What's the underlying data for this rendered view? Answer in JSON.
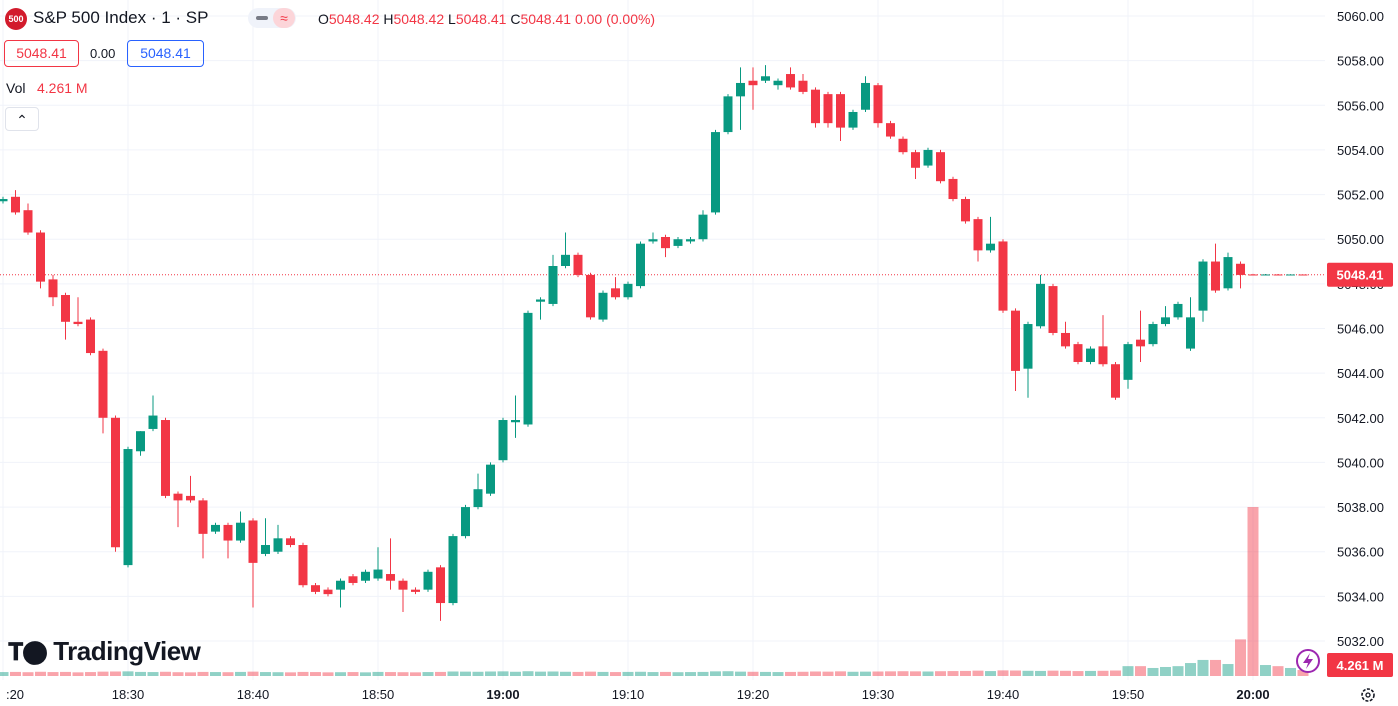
{
  "header": {
    "logo": "500",
    "title": "S&P 500 Index · 1 · SP",
    "o_label": "O",
    "o": "5048.42",
    "h_label": "H",
    "h": "5048.42",
    "l_label": "L",
    "l": "5048.41",
    "c_label": "C",
    "c": "5048.41",
    "change": "0.00 (0.00%)",
    "sell": "5048.41",
    "spread": "0.00",
    "buy": "5048.41",
    "vol_label": "Vol",
    "vol": "4.261 M",
    "brand": "TradingView"
  },
  "chart_data": {
    "type": "candlestick",
    "up_color": "#089981",
    "down_color": "#f23645",
    "grid": true,
    "x": [
      "18:20",
      "18:21",
      "18:22",
      "18:23",
      "18:24",
      "18:25",
      "18:26",
      "18:27",
      "18:28",
      "18:29",
      "18:30",
      "18:31",
      "18:32",
      "18:33",
      "18:34",
      "18:35",
      "18:36",
      "18:37",
      "18:38",
      "18:39",
      "18:40",
      "18:41",
      "18:42",
      "18:43",
      "18:44",
      "18:45",
      "18:46",
      "18:47",
      "18:48",
      "18:49",
      "18:50",
      "18:51",
      "18:52",
      "18:53",
      "18:54",
      "18:55",
      "18:56",
      "18:57",
      "18:58",
      "18:59",
      "19:00",
      "19:01",
      "19:02",
      "19:03",
      "19:04",
      "19:05",
      "19:06",
      "19:07",
      "19:08",
      "19:09",
      "19:10",
      "19:11",
      "19:12",
      "19:13",
      "19:14",
      "19:15",
      "19:16",
      "19:17",
      "19:18",
      "19:19",
      "19:20",
      "19:21",
      "19:22",
      "19:23",
      "19:24",
      "19:25",
      "19:26",
      "19:27",
      "19:28",
      "19:29",
      "19:30",
      "19:31",
      "19:32",
      "19:33",
      "19:34",
      "19:35",
      "19:36",
      "19:37",
      "19:38",
      "19:39",
      "19:40",
      "19:41",
      "19:42",
      "19:43",
      "19:44",
      "19:45",
      "19:46",
      "19:47",
      "19:48",
      "19:49",
      "19:50",
      "19:51",
      "19:52",
      "19:53",
      "19:54",
      "19:55",
      "19:56",
      "19:57",
      "19:58",
      "19:59",
      "20:00",
      "20:01",
      "20:02",
      "20:03",
      "20:04"
    ],
    "open": [
      5051.7,
      5051.9,
      5051.3,
      5050.3,
      5048.2,
      5047.5,
      5046.3,
      5046.4,
      5045.0,
      5042.0,
      5035.4,
      5040.5,
      5041.5,
      5041.9,
      5038.6,
      5038.5,
      5038.3,
      5036.9,
      5037.2,
      5036.5,
      5037.4,
      5035.9,
      5036.0,
      5036.6,
      5036.3,
      5034.5,
      5034.3,
      5034.3,
      5034.9,
      5034.7,
      5034.8,
      5035.0,
      5034.7,
      5034.3,
      5034.3,
      5035.3,
      5033.7,
      5036.7,
      5038.0,
      5038.6,
      5040.1,
      5041.8,
      5041.7,
      5047.2,
      5047.1,
      5048.8,
      5049.3,
      5048.4,
      5046.4,
      5047.8,
      5047.4,
      5047.9,
      5049.9,
      5050.1,
      5049.7,
      5049.9,
      5050.0,
      5051.2,
      5054.8,
      5056.4,
      5057.1,
      5057.1,
      5056.9,
      5057.4,
      5057.1,
      5056.7,
      5056.5,
      5056.5,
      5055.0,
      5055.8,
      5056.9,
      5055.2,
      5054.5,
      5053.9,
      5053.3,
      5053.9,
      5052.7,
      5051.8,
      5050.9,
      5049.5,
      5049.9,
      5046.8,
      5044.2,
      5046.1,
      5047.9,
      5045.8,
      5045.3,
      5044.5,
      5045.2,
      5044.4,
      5043.7,
      5045.5,
      5045.3,
      5046.2,
      5046.5,
      5045.1,
      5046.8,
      5049.0,
      5047.8,
      5048.9,
      5048.42,
      5048.4,
      5048.42,
      5048.41,
      5048.42
    ],
    "high": [
      5051.9,
      5052.2,
      5051.6,
      5050.4,
      5048.4,
      5047.6,
      5047.4,
      5046.5,
      5045.1,
      5042.1,
      5040.7,
      5041.4,
      5043.0,
      5042.0,
      5038.7,
      5039.4,
      5038.4,
      5037.3,
      5037.3,
      5037.8,
      5037.5,
      5037.5,
      5037.2,
      5036.7,
      5036.4,
      5034.6,
      5034.4,
      5034.8,
      5035.0,
      5035.2,
      5036.2,
      5036.6,
      5034.8,
      5034.4,
      5035.2,
      5035.4,
      5036.8,
      5038.1,
      5039.5,
      5040.0,
      5042.0,
      5043.0,
      5046.8,
      5047.4,
      5049.3,
      5050.3,
      5049.4,
      5048.5,
      5047.7,
      5048.3,
      5048.1,
      5049.9,
      5050.3,
      5050.2,
      5050.1,
      5050.1,
      5051.3,
      5054.9,
      5056.5,
      5057.7,
      5057.7,
      5057.8,
      5057.2,
      5057.7,
      5057.4,
      5056.8,
      5056.6,
      5056.6,
      5055.8,
      5057.3,
      5057.0,
      5055.3,
      5054.6,
      5054.0,
      5054.1,
      5054.0,
      5052.8,
      5051.9,
      5051.0,
      5051.0,
      5050.0,
      5046.9,
      5046.3,
      5048.4,
      5048.0,
      5046.3,
      5045.4,
      5045.2,
      5046.6,
      5044.5,
      5045.4,
      5046.8,
      5046.3,
      5047.0,
      5047.2,
      5047.4,
      5049.1,
      5049.8,
      5049.4,
      5049.0,
      5048.45,
      5048.44,
      5048.44,
      5048.43,
      5048.42
    ],
    "low": [
      5051.6,
      5051.1,
      5050.2,
      5047.8,
      5047.0,
      5045.5,
      5046.1,
      5044.8,
      5041.3,
      5036.0,
      5035.3,
      5040.3,
      5041.4,
      5038.4,
      5037.1,
      5038.2,
      5035.7,
      5036.8,
      5035.7,
      5036.4,
      5033.5,
      5035.8,
      5035.9,
      5036.2,
      5034.4,
      5034.1,
      5034.0,
      5033.5,
      5034.5,
      5034.6,
      5034.7,
      5034.3,
      5033.3,
      5034.1,
      5034.2,
      5032.9,
      5033.6,
      5036.6,
      5037.9,
      5038.5,
      5040.0,
      5041.1,
      5041.6,
      5046.4,
      5047.0,
      5048.7,
      5048.3,
      5046.4,
      5046.3,
      5047.3,
      5047.3,
      5047.8,
      5049.8,
      5049.2,
      5049.6,
      5049.8,
      5049.9,
      5051.1,
      5054.7,
      5054.9,
      5055.8,
      5057.0,
      5056.7,
      5056.7,
      5056.5,
      5055.0,
      5055.0,
      5054.4,
      5054.9,
      5055.7,
      5055.0,
      5054.5,
      5053.8,
      5052.7,
      5053.2,
      5052.5,
      5051.7,
      5050.7,
      5049.0,
      5049.4,
      5046.7,
      5043.2,
      5042.9,
      5046.0,
      5045.7,
      5045.1,
      5044.4,
      5044.4,
      5044.3,
      5042.8,
      5043.3,
      5044.5,
      5045.2,
      5046.1,
      5046.4,
      5045.0,
      5046.3,
      5047.6,
      5047.7,
      5047.8,
      5048.38,
      5048.38,
      5048.4,
      5048.4,
      5048.41
    ],
    "close": [
      5051.8,
      5051.2,
      5050.3,
      5048.1,
      5047.4,
      5046.3,
      5046.2,
      5044.9,
      5042.0,
      5036.2,
      5040.6,
      5041.4,
      5042.1,
      5038.5,
      5038.3,
      5038.3,
      5036.8,
      5037.2,
      5036.5,
      5037.3,
      5035.5,
      5036.3,
      5036.6,
      5036.3,
      5034.5,
      5034.2,
      5034.1,
      5034.7,
      5034.6,
      5035.1,
      5035.2,
      5034.7,
      5034.3,
      5034.2,
      5035.1,
      5033.7,
      5036.7,
      5038.0,
      5038.8,
      5039.9,
      5041.9,
      5041.9,
      5046.7,
      5047.3,
      5048.8,
      5049.3,
      5048.4,
      5046.5,
      5047.6,
      5047.4,
      5048.0,
      5049.8,
      5050.0,
      5049.6,
      5050.0,
      5050.0,
      5051.1,
      5054.8,
      5056.4,
      5057.0,
      5056.9,
      5057.3,
      5057.1,
      5056.8,
      5056.6,
      5055.2,
      5055.2,
      5055.0,
      5055.7,
      5057.0,
      5055.2,
      5054.6,
      5053.9,
      5053.2,
      5054.0,
      5052.6,
      5051.8,
      5050.8,
      5049.5,
      5049.8,
      5046.8,
      5044.1,
      5046.2,
      5048.0,
      5045.8,
      5045.2,
      5044.5,
      5045.1,
      5044.4,
      5042.9,
      5045.3,
      5045.2,
      5046.2,
      5046.5,
      5047.1,
      5046.5,
      5049.0,
      5047.7,
      5049.2,
      5048.4,
      5048.4,
      5048.42,
      5048.41,
      5048.42,
      5048.41
    ],
    "volume": [
      2.8,
      2.9,
      2.7,
      3.0,
      2.8,
      2.9,
      2.6,
      2.8,
      3.1,
      3.2,
      3.3,
      2.9,
      2.8,
      3.0,
      2.7,
      2.6,
      2.9,
      2.8,
      2.7,
      2.9,
      3.1,
      2.8,
      2.7,
      2.6,
      2.9,
      2.8,
      2.6,
      2.7,
      2.8,
      2.6,
      2.9,
      2.8,
      2.7,
      2.6,
      2.8,
      2.9,
      3.2,
      3.1,
      3.0,
      3.2,
      3.3,
      3.0,
      3.4,
      3.1,
      3.2,
      3.0,
      2.9,
      3.1,
      2.9,
      2.8,
      2.9,
      3.0,
      2.8,
      2.9,
      2.7,
      2.8,
      2.9,
      3.3,
      3.4,
      3.1,
      3.0,
      2.9,
      2.8,
      2.9,
      3.0,
      3.2,
      3.1,
      3.3,
      3.0,
      3.1,
      3.2,
      3.3,
      3.4,
      3.3,
      3.2,
      3.4,
      3.5,
      3.6,
      3.8,
      3.5,
      4.0,
      3.9,
      3.7,
      3.6,
      3.8,
      3.7,
      3.5,
      3.6,
      3.7,
      3.9,
      7.0,
      7.0,
      5.7,
      6.4,
      7.0,
      9.2,
      11.4,
      11.4,
      8.5,
      26.0,
      120.0,
      7.8,
      7.0,
      5.7,
      4.261
    ],
    "last": {
      "value": 5048.41,
      "label": "5048.41"
    },
    "last_volume_label": "4.261 M",
    "ylim": [
      5031.2,
      5060.7
    ],
    "yticks": [
      {
        "value": 5032,
        "label": "5032.00"
      },
      {
        "value": 5034,
        "label": "5034.00"
      },
      {
        "value": 5036,
        "label": "5036.00"
      },
      {
        "value": 5038,
        "label": "5038.00"
      },
      {
        "value": 5040,
        "label": "5040.00"
      },
      {
        "value": 5042,
        "label": "5042.00"
      },
      {
        "value": 5044,
        "label": "5044.00"
      },
      {
        "value": 5046,
        "label": "5046.00"
      },
      {
        "value": 5048,
        "label": "5048.00"
      },
      {
        "value": 5050,
        "label": "5050.00"
      },
      {
        "value": 5052,
        "label": "5052.00"
      },
      {
        "value": 5054,
        "label": "5054.00"
      },
      {
        "value": 5056,
        "label": "5056.00"
      },
      {
        "value": 5058,
        "label": "5058.00"
      },
      {
        "value": 5060,
        "label": "5060.00"
      }
    ],
    "xticks": [
      {
        "value": "18:20",
        "label": ":20"
      },
      "18:30",
      "18:40",
      "18:50",
      "19:00",
      "19:10",
      "19:20",
      "19:30",
      "19:40",
      "19:50",
      "20:00"
    ],
    "bold_xticks": [
      "19:00",
      "20:00"
    ]
  }
}
